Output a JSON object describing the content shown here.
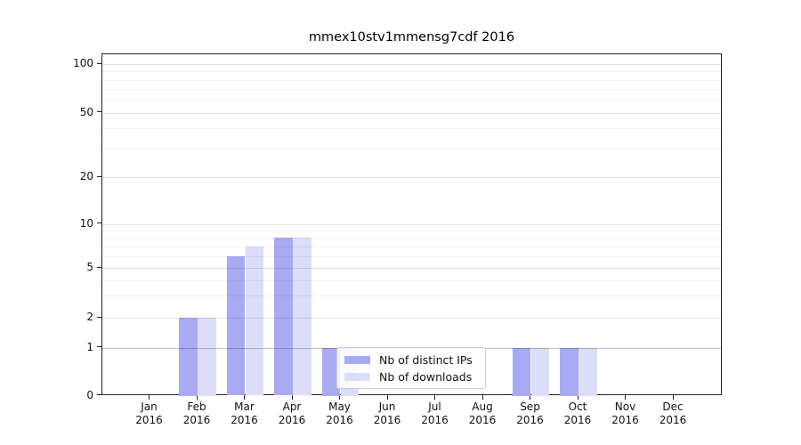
{
  "figure": {
    "title": "mmex10stv1mmensg7cdf 2016",
    "background": "#ffffff"
  },
  "chart_data": {
    "type": "bar",
    "title": "mmex10stv1mmensg7cdf 2016",
    "x_categories": [
      "Jan",
      "Feb",
      "Mar",
      "Apr",
      "May",
      "Jun",
      "Jul",
      "Aug",
      "Sep",
      "Oct",
      "Nov",
      "Dec"
    ],
    "x_year": "2016",
    "series": [
      {
        "name": "Nb of distinct IPs",
        "color": "#a9aaf4",
        "values": [
          0,
          2,
          6,
          8,
          1,
          0,
          0,
          0,
          1,
          1,
          0,
          0
        ]
      },
      {
        "name": "Nb of downloads",
        "color": "#dcddf9",
        "values": [
          0,
          2,
          7,
          8,
          1,
          0,
          0,
          0,
          1,
          1,
          0,
          0
        ]
      }
    ],
    "y_scale": "symlog",
    "y_ticks": [
      0,
      1,
      2,
      5,
      10,
      20,
      50,
      100
    ],
    "y_minor_ticks": [
      3,
      4,
      6,
      7,
      8,
      9,
      30,
      40,
      60,
      70,
      80,
      90
    ],
    "ylim": [
      0,
      115
    ],
    "grid": true,
    "legend": {
      "position": "lower center"
    },
    "colors": {
      "grid_major": "rgba(0,0,0,0.11)",
      "grid_minor": "rgba(0,0,0,0.055)",
      "grid_unit_line": "rgba(0,0,0,0.24)",
      "spine": "#222222",
      "text": "#111111"
    }
  }
}
